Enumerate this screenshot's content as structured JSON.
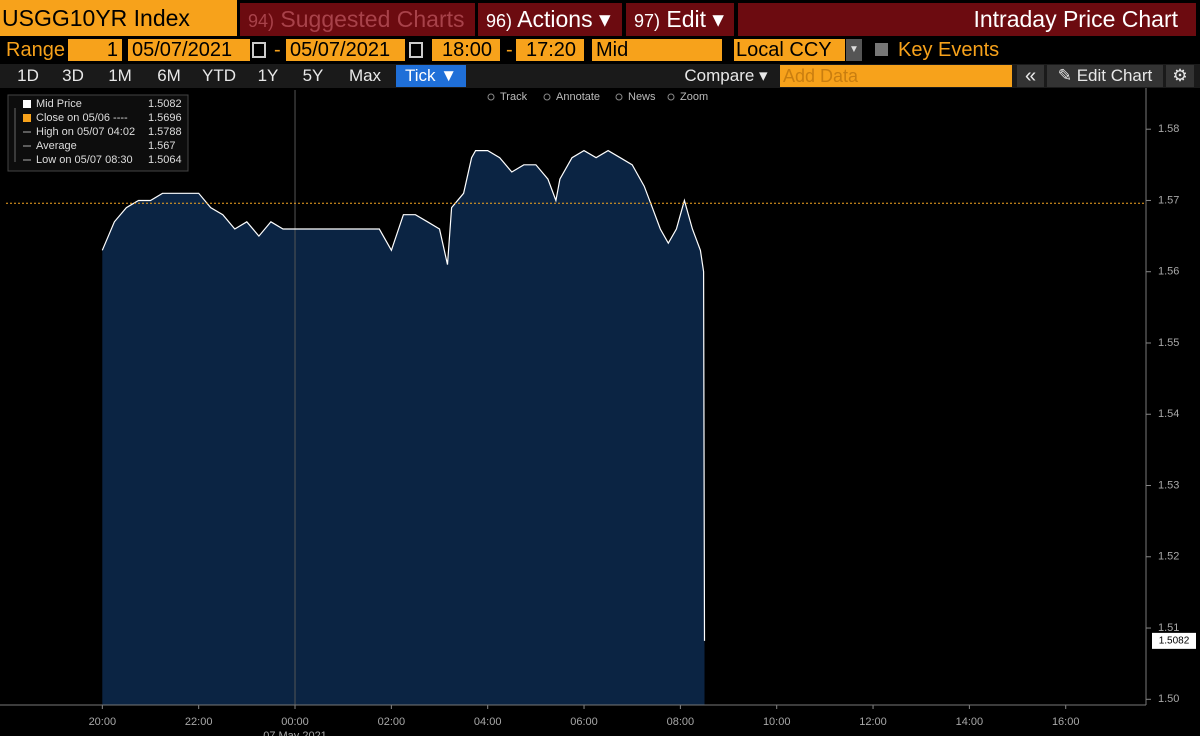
{
  "header": {
    "ticker": "USGG10YR Index",
    "suggested_num": "94)",
    "suggested": "Suggested Charts",
    "actions_num": "96)",
    "actions": "Actions ▾",
    "edit_num": "97)",
    "edit": "Edit ▾",
    "title": "Intraday Price Chart"
  },
  "controls": {
    "range_label": "Range",
    "range_value": "1",
    "start_date": "05/07/2021",
    "dash1": "-",
    "end_date": "05/07/2021",
    "start_time": "18:00",
    "dash2": "-",
    "end_time": "17:20",
    "price_type": "Mid",
    "currency": "Local CCY",
    "key_events": "Key Events"
  },
  "periods": [
    "1D",
    "3D",
    "1M",
    "6M",
    "YTD",
    "1Y",
    "5Y",
    "Max"
  ],
  "tick_button": "Tick ▼",
  "compare": "Compare ▾",
  "add_data": "Add Data",
  "edit_chart": "Edit Chart",
  "chart_tools": [
    "Track",
    "Annotate",
    "News",
    "Zoom"
  ],
  "chart_data": {
    "type": "line",
    "x": [
      "20:00",
      "20:15",
      "20:30",
      "20:45",
      "21:00",
      "21:15",
      "21:30",
      "21:45",
      "22:00",
      "22:15",
      "22:30",
      "22:45",
      "23:00",
      "23:15",
      "23:30",
      "23:45",
      "00:00",
      "00:15",
      "00:30",
      "00:45",
      "01:00",
      "01:15",
      "01:30",
      "01:45",
      "02:00",
      "02:15",
      "02:30",
      "02:45",
      "03:00",
      "03:10",
      "03:15",
      "03:30",
      "03:40",
      "03:45",
      "04:00",
      "04:15",
      "04:30",
      "04:45",
      "05:00",
      "05:15",
      "05:25",
      "05:30",
      "05:45",
      "06:00",
      "06:15",
      "06:30",
      "06:45",
      "07:00",
      "07:15",
      "07:25",
      "07:35",
      "07:45",
      "07:55",
      "08:00",
      "08:05",
      "08:15",
      "08:25",
      "08:29",
      "08:30"
    ],
    "series": [
      {
        "name": "Mid Price",
        "color": "#ffffff",
        "values": [
          1.563,
          1.567,
          1.569,
          1.57,
          1.57,
          1.571,
          1.571,
          1.571,
          1.571,
          1.569,
          1.568,
          1.566,
          1.567,
          1.565,
          1.567,
          1.566,
          1.566,
          1.566,
          1.566,
          1.566,
          1.566,
          1.566,
          1.566,
          1.566,
          1.563,
          1.568,
          1.568,
          1.567,
          1.566,
          1.561,
          1.569,
          1.571,
          1.576,
          1.577,
          1.577,
          1.576,
          1.574,
          1.575,
          1.575,
          1.573,
          1.57,
          1.573,
          1.576,
          1.577,
          1.576,
          1.577,
          1.576,
          1.575,
          1.572,
          1.569,
          1.566,
          1.564,
          1.566,
          1.568,
          1.57,
          1.566,
          1.563,
          1.56,
          1.5082
        ]
      }
    ],
    "fill_color": "#0b2443",
    "xlim": [
      "18:00",
      "17:40"
    ],
    "xticks": [
      "20:00",
      "22:00",
      "00:00",
      "02:00",
      "04:00",
      "06:00",
      "08:00",
      "10:00",
      "12:00",
      "14:00",
      "16:00"
    ],
    "xlabel": "07 May 2021",
    "ylim": [
      1.4992,
      1.5855
    ],
    "yticks": [
      {
        "value": 1.5,
        "label": "1.50"
      },
      1.51,
      1.52,
      1.53,
      1.54,
      1.55,
      1.56,
      1.57,
      1.58
    ],
    "legend": [
      {
        "label": "Mid Price",
        "value": 1.5082
      },
      {
        "label": "Close on 05/06 ----",
        "value": 1.5696
      },
      {
        "label": "High on 05/07 04:02",
        "value": 1.5788
      },
      {
        "label": "Average",
        "value": 1.567
      },
      {
        "label": "Low on 05/07 08:30",
        "value": 1.5064
      }
    ],
    "close_line": {
      "value": 1.5696,
      "color": "#f5a623"
    }
  }
}
